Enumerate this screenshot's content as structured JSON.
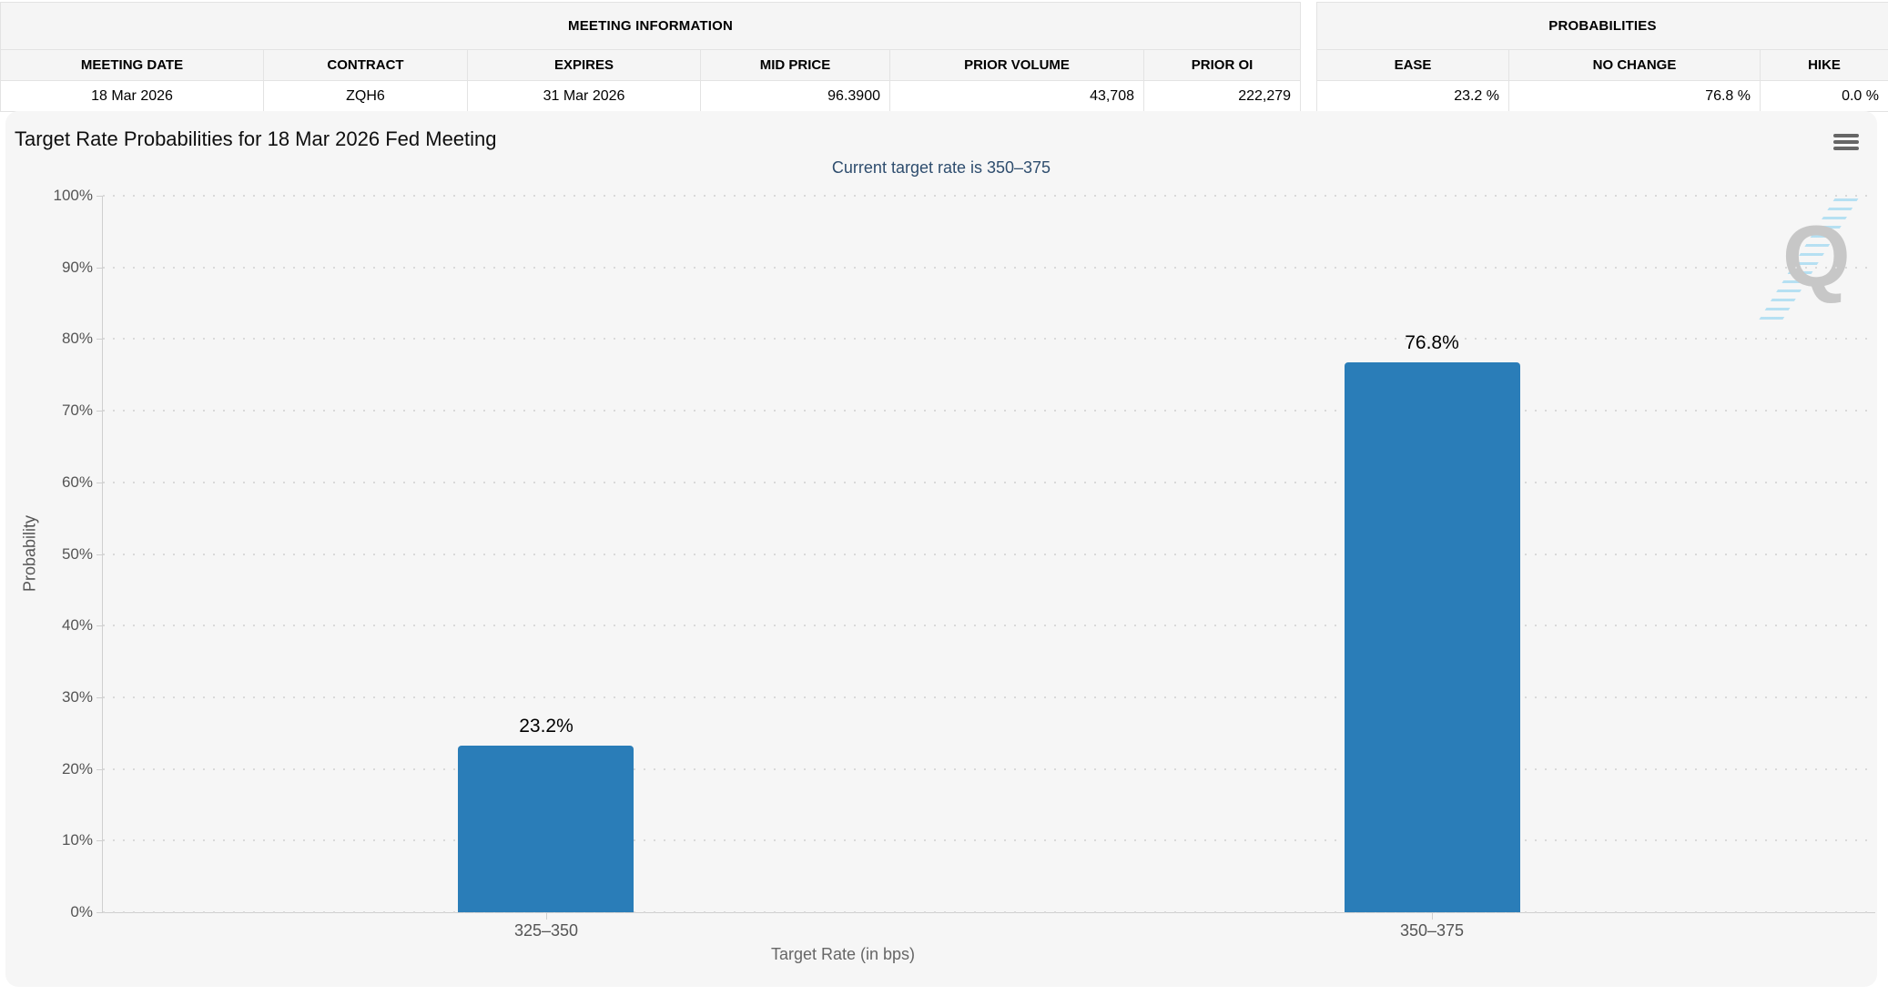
{
  "meeting_info_table": {
    "title": "MEETING INFORMATION",
    "columns": [
      "MEETING DATE",
      "CONTRACT",
      "EXPIRES",
      "MID PRICE",
      "PRIOR VOLUME",
      "PRIOR OI"
    ],
    "row": [
      "18 Mar 2026",
      "ZQH6",
      "31 Mar 2026",
      "96.3900",
      "43,708",
      "222,279"
    ]
  },
  "probabilities_table": {
    "title": "PROBABILITIES",
    "columns": [
      "EASE",
      "NO CHANGE",
      "HIKE"
    ],
    "row": [
      "23.2 %",
      "76.8 %",
      "0.0 %"
    ]
  },
  "chart": {
    "menu_icon": "hamburger-menu",
    "watermark_letter": "Q"
  },
  "chart_data": {
    "type": "bar",
    "title": "Target Rate Probabilities for 18 Mar 2026 Fed Meeting",
    "subtitle": "Current target rate is 350–375",
    "categories": [
      "325–350",
      "350–375"
    ],
    "values": [
      23.2,
      76.8
    ],
    "bar_labels": [
      "23.2%",
      "76.8%"
    ],
    "xlabel": "Target Rate (in bps)",
    "ylabel": "Probability",
    "ylim": [
      0,
      100
    ],
    "ytick_step": 10,
    "ytick_labels": [
      "0%",
      "10%",
      "20%",
      "30%",
      "40%",
      "50%",
      "60%",
      "70%",
      "80%",
      "90%",
      "100%"
    ],
    "grid": "horizontal-dotted",
    "legend": "none",
    "bar_color": "#2a7db8"
  },
  "colors": {
    "bar": "#2a7db8",
    "subtitle": "#2e4d6e",
    "axis": "#cfcfcf",
    "grid_dot": "#d9d9d9",
    "table_header_bg": "#f5f5f5",
    "chart_bg": "#f6f6f6",
    "watermark_gray": "#c7c7c7",
    "watermark_blue": "#aadcf2"
  }
}
